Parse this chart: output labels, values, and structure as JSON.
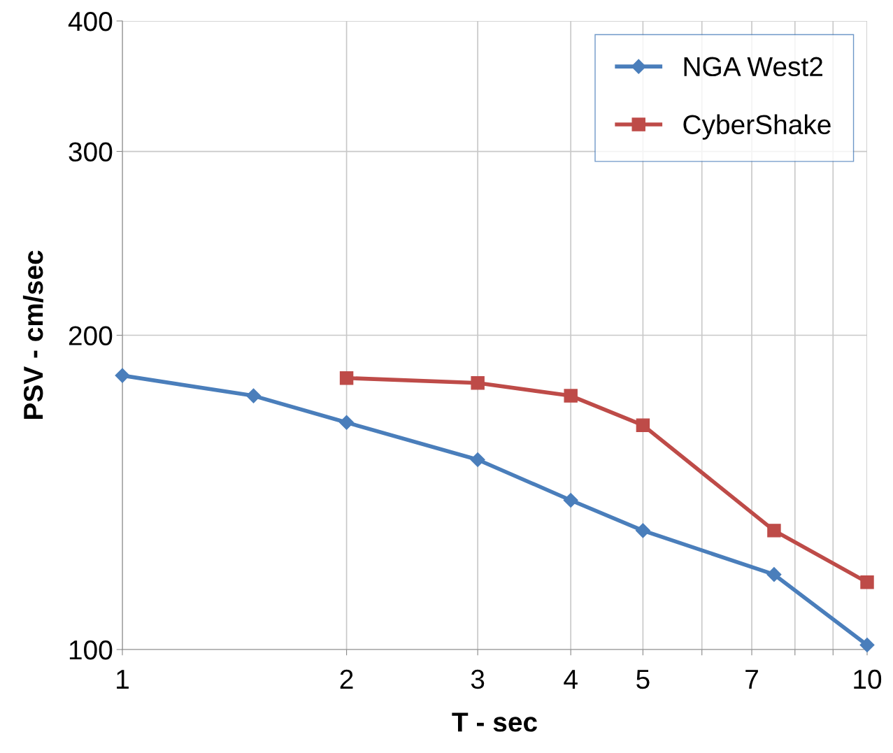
{
  "chart_data": {
    "type": "line",
    "xlabel": "T - sec",
    "ylabel": "PSV - cm/sec",
    "log": "xy",
    "xlim": [
      1,
      10
    ],
    "ylim": [
      100,
      400
    ],
    "xticks": [
      1,
      2,
      3,
      4,
      5,
      {
        "value": 6,
        "label": null
      },
      7,
      {
        "value": 8,
        "label": null
      },
      {
        "value": 9,
        "label": null
      },
      10
    ],
    "yticks": [
      100,
      200,
      300,
      400
    ],
    "grid": true,
    "legend": "top right",
    "series": [
      {
        "name": "NGA West2",
        "color": "#4a7ebb",
        "marker": "diamond",
        "x": [
          1,
          1.5,
          2,
          3,
          4,
          5,
          7.5,
          10
        ],
        "values": [
          183,
          175,
          165,
          152,
          139,
          130,
          118,
          101
        ]
      },
      {
        "name": "CyberShake",
        "color": "#be4b48",
        "marker": "square",
        "x": [
          2,
          3,
          4,
          5,
          7.5,
          10
        ],
        "values": [
          182,
          180,
          175,
          164,
          130,
          116
        ]
      }
    ]
  }
}
